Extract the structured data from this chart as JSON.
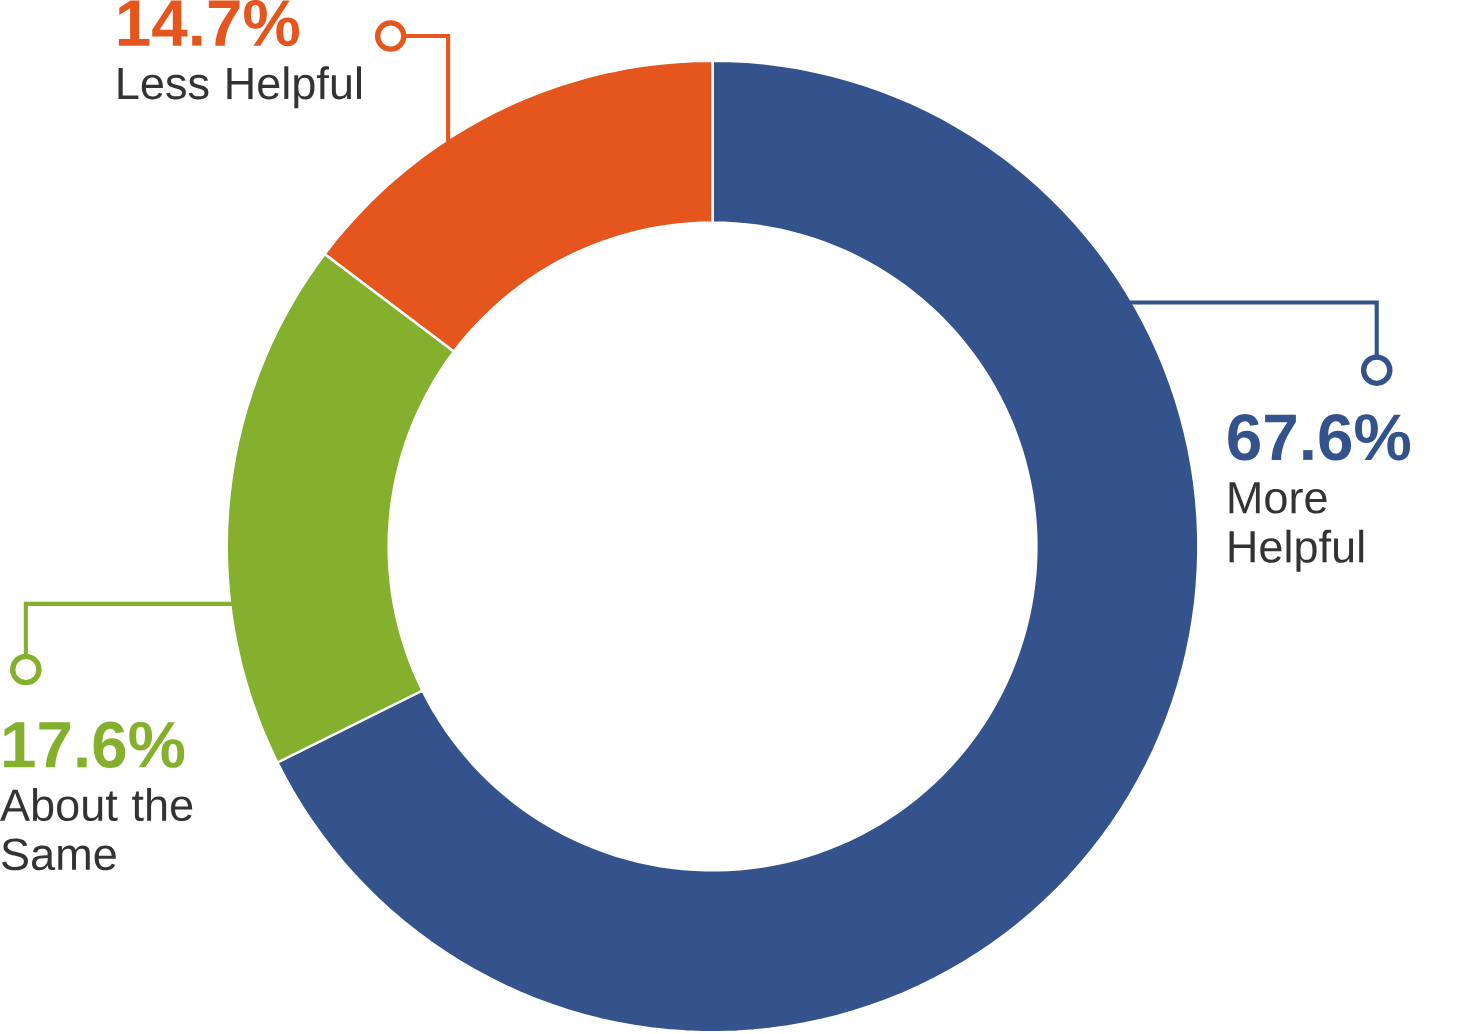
{
  "chart_data": {
    "type": "donut",
    "categories": [
      "More Helpful",
      "About the Same",
      "Less Helpful"
    ],
    "values": [
      67.6,
      17.6,
      14.7
    ],
    "value_labels": [
      "67.6%",
      "17.6%",
      "14.7%"
    ],
    "colors": [
      "#34528c",
      "#84b02d",
      "#e5561f"
    ]
  }
}
